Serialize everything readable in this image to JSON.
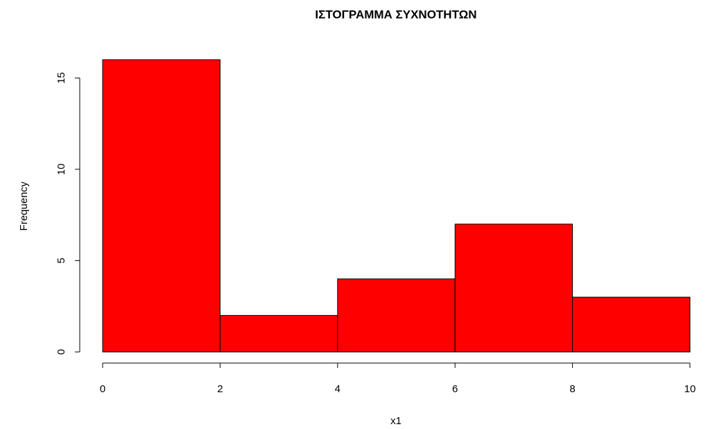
{
  "chart_data": {
    "type": "histogram",
    "title": "ΙΣΤΟΓΡΑΜΜΑ ΣΥΧΝΟΤΗΤΩΝ",
    "xlabel": "x1",
    "ylabel": "Frequency",
    "bins": [
      0,
      2,
      4,
      6,
      8,
      10
    ],
    "values": [
      16,
      2,
      4,
      7,
      3
    ],
    "color": "#ff0000",
    "xlim": [
      0,
      10
    ],
    "ylim": [
      0,
      16
    ],
    "xticks": [
      0,
      2,
      4,
      6,
      8,
      10
    ],
    "yticks": [
      0,
      5,
      10,
      15
    ]
  }
}
